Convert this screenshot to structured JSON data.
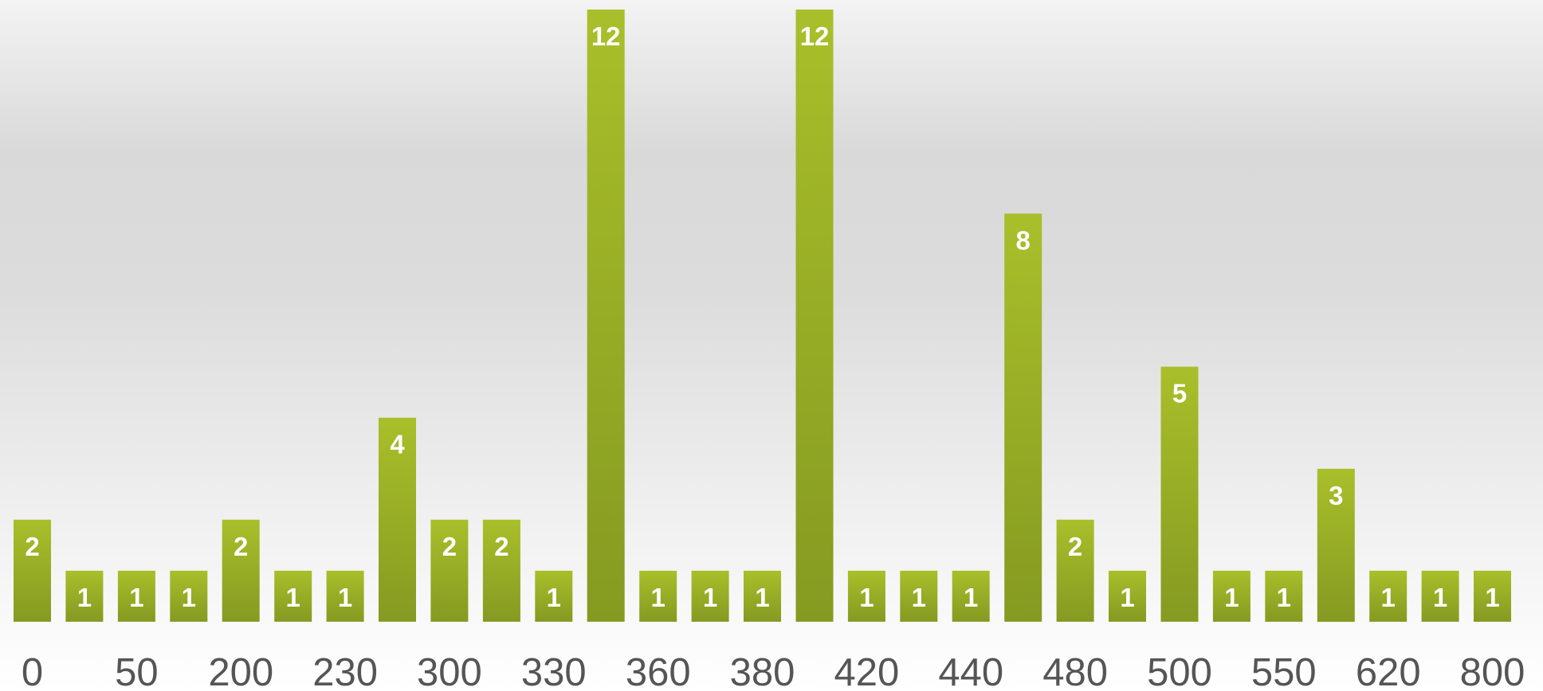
{
  "chart_data": {
    "type": "bar",
    "title": "",
    "xlabel": "",
    "ylabel": "",
    "categories": [
      "0",
      "",
      "50",
      "",
      "200",
      "",
      "230",
      "",
      "300",
      "",
      "330",
      "",
      "360",
      "",
      "380",
      "",
      "420",
      "",
      "440",
      "",
      "480",
      "",
      "500",
      "",
      "550",
      "",
      "620",
      "",
      "800"
    ],
    "values": [
      2,
      1,
      1,
      1,
      2,
      1,
      1,
      4,
      2,
      2,
      1,
      12,
      1,
      1,
      1,
      12,
      1,
      1,
      1,
      8,
      2,
      1,
      5,
      1,
      1,
      3,
      1,
      1,
      1
    ],
    "ylim": [
      0,
      12
    ],
    "grid": false,
    "legend": "none",
    "data_labels": true,
    "colors": {
      "bar_top": "#a9bf2a",
      "bar_bottom": "#859a21",
      "label": "#ffffff",
      "tick": "#555555"
    }
  }
}
